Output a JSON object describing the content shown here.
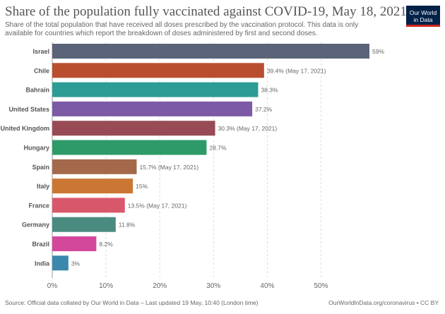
{
  "header": {
    "title": "Share of the population fully vaccinated against COVID-19, May 18, 2021",
    "subtitle": "Share of the total population that have received all doses prescribed by the vaccination protocol. This data is only available for countries which report the breakdown of doses administered by first and second doses.",
    "logo_line1": "Our World",
    "logo_line2": "in Data",
    "logo_color": "#002147",
    "logo_accent": "#ce261e"
  },
  "footer": {
    "source": "Source: Official data collated by Our World in Data – Last updated 19 May, 10:40 (London time)",
    "credit": "OurWorldInData.org/coronavirus • CC BY"
  },
  "chart_data": {
    "type": "bar",
    "orientation": "horizontal",
    "title": "Share of the population fully vaccinated against COVID-19, May 18, 2021",
    "xlabel": "",
    "ylabel": "",
    "xlim": [
      0,
      59
    ],
    "grid": true,
    "ticks": [
      0,
      10,
      20,
      30,
      40,
      50
    ],
    "tick_labels": [
      "0%",
      "10%",
      "20%",
      "30%",
      "40%",
      "50%"
    ],
    "categories": [
      "Israel",
      "Chile",
      "Bahrain",
      "United States",
      "United Kingdom",
      "Hungary",
      "Spain",
      "Italy",
      "France",
      "Germany",
      "Brazil",
      "India"
    ],
    "values": [
      59,
      39.4,
      38.3,
      37.2,
      30.3,
      28.7,
      15.7,
      15,
      13.5,
      11.8,
      8.2,
      3
    ],
    "value_labels": [
      "59%",
      "39.4% (May 17, 2021)",
      "38.3%",
      "37.2%",
      "30.3% (May 17, 2021)",
      "28.7%",
      "15.7% (May 17, 2021)",
      "15%",
      "13.5% (May 17, 2021)",
      "11.8%",
      "8.2%",
      "3%"
    ],
    "colors": [
      "#5b6378",
      "#b84e2e",
      "#2d9c94",
      "#7c5aa6",
      "#984b55",
      "#2e9a69",
      "#a3694a",
      "#cb7734",
      "#d9576b",
      "#4a8b7f",
      "#d4489c",
      "#3b88ad"
    ]
  }
}
